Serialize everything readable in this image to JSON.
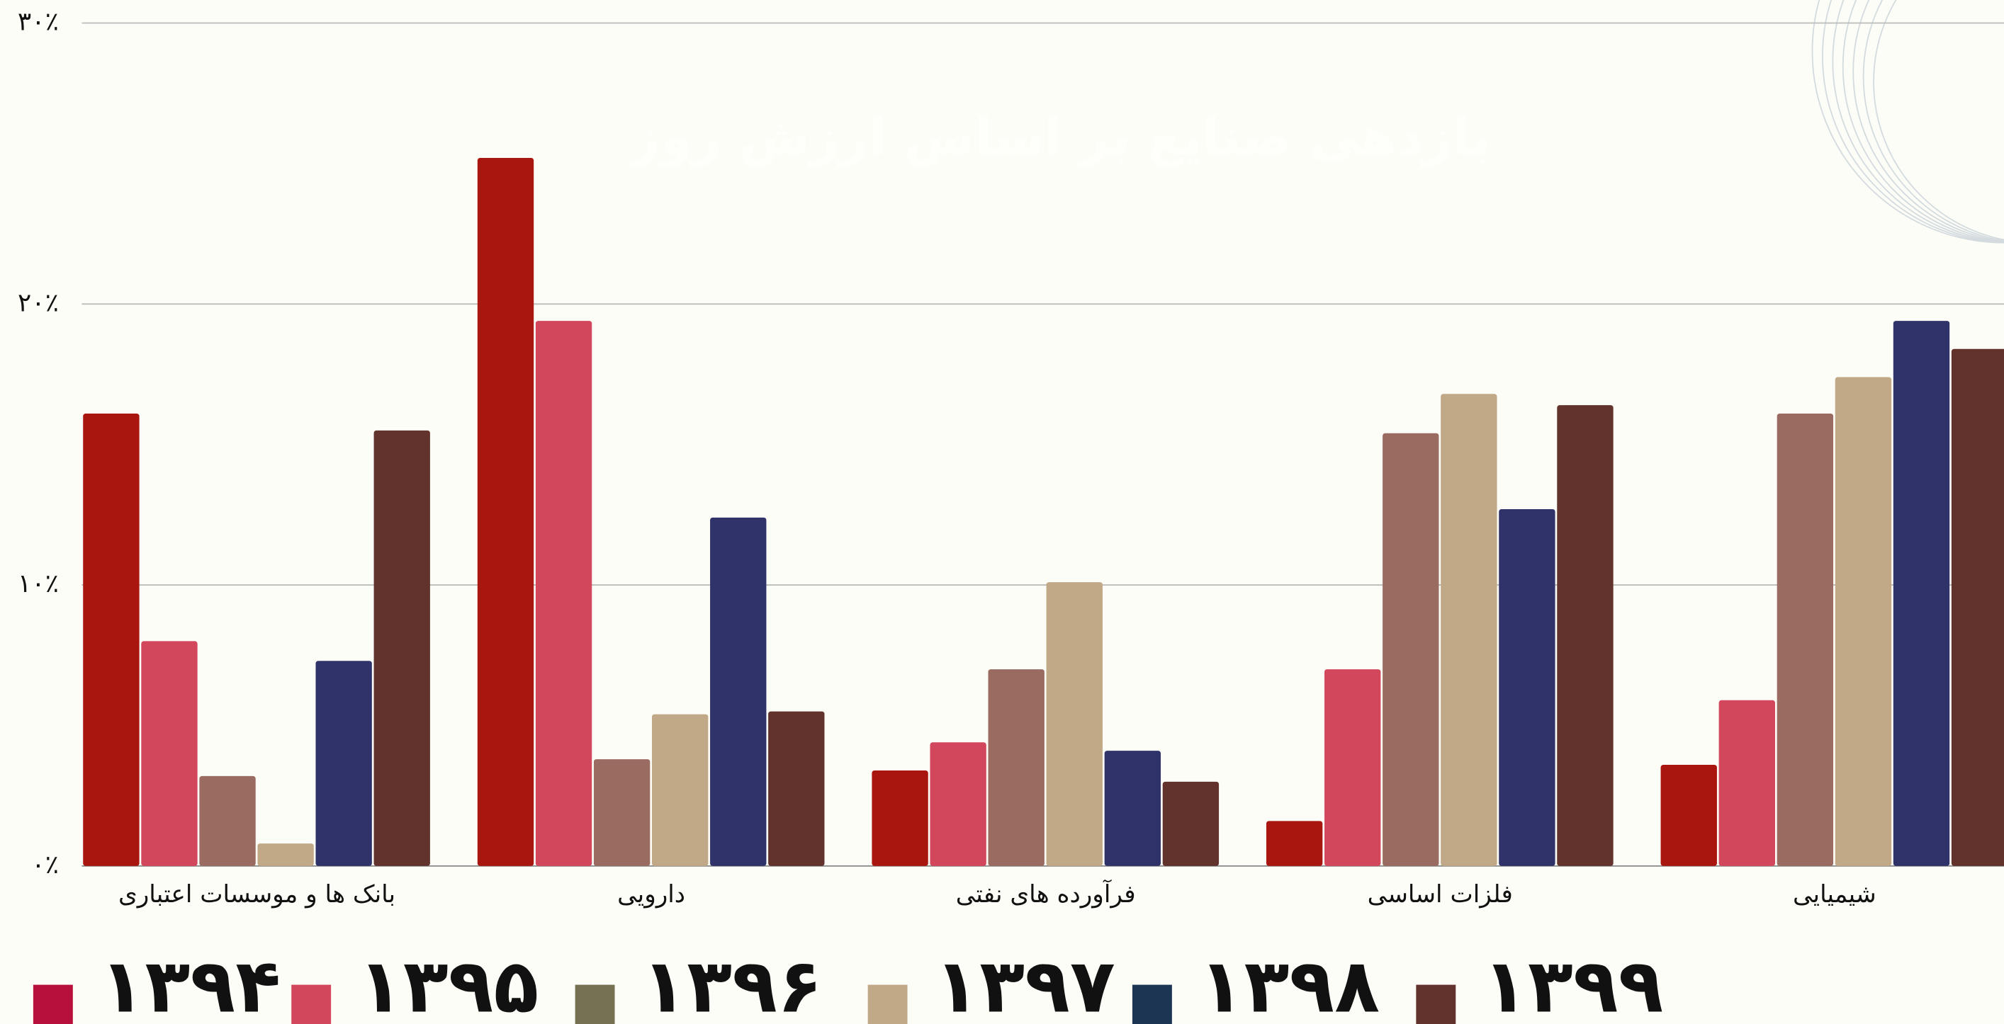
{
  "chart_data": {
    "type": "bar",
    "title": "بازدهی صنایع بر اساس ارزش روز",
    "categories": [
      "بانک ها و موسسات اعتباری",
      "دارویی",
      "فرآورده های نفتی",
      "فلزات اساسی",
      "شیمیایی"
    ],
    "series": [
      {
        "name": "۱۳۹۴",
        "color": "#a8160f",
        "legend_color": "#b8103c",
        "values": [
          16.1,
          25.2,
          3.4,
          1.6,
          3.6
        ]
      },
      {
        "name": "۱۳۹۵",
        "color": "#d2475b",
        "legend_color": "#d2475b",
        "values": [
          8.0,
          19.4,
          4.4,
          7.0,
          5.9
        ]
      },
      {
        "name": "۱۳۹۶",
        "color": "#9a6b60",
        "legend_color": "#767152",
        "values": [
          3.2,
          3.8,
          7.0,
          15.4,
          16.1
        ]
      },
      {
        "name": "۱۳۹۷",
        "color": "#c1a886",
        "legend_color": "#c1a886",
        "values": [
          0.8,
          5.4,
          10.1,
          16.8,
          17.4
        ]
      },
      {
        "name": "۱۳۹۸",
        "color": "#30336a",
        "legend_color": "#1b3553",
        "values": [
          7.3,
          12.4,
          4.1,
          12.7,
          19.4
        ]
      },
      {
        "name": "۱۳۹۹",
        "color": "#62332d",
        "legend_color": "#62332d",
        "values": [
          15.5,
          5.5,
          3.0,
          16.4,
          18.4
        ]
      }
    ],
    "ylim": [
      0,
      30
    ],
    "yticks": [
      {
        "value": 0,
        "label": "۰٪"
      },
      {
        "value": 10,
        "label": "۱۰٪"
      },
      {
        "value": 20,
        "label": "۲۰٪"
      },
      {
        "value": 30,
        "label": "۳۰٪"
      }
    ],
    "grid": true
  }
}
